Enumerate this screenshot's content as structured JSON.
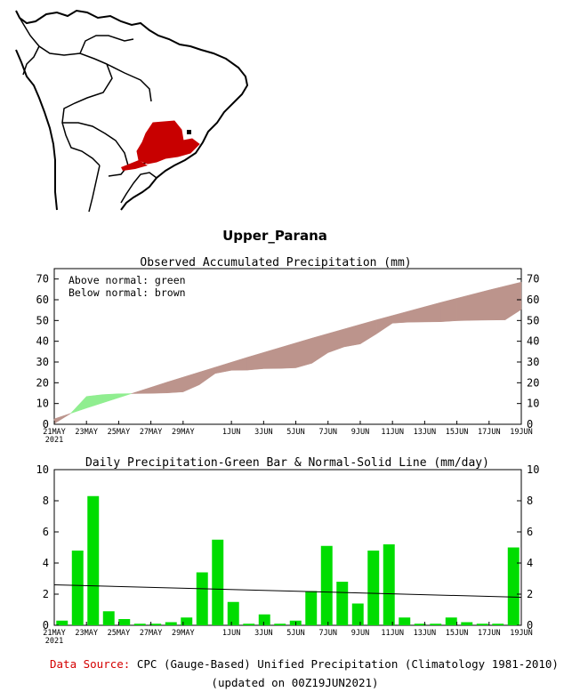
{
  "region_name": "Upper_Parana",
  "footer": {
    "source_label": "Data Source:",
    "source_text": "CPC (Gauge-Based) Unified Precipitation (Climatology 1981-2010)",
    "updated": "(updated on 00Z19JUN2021)"
  },
  "colors": {
    "region": "#c80000",
    "above_normal": "#90ee90",
    "below_normal": "#bc948c",
    "bar": "#00dd00",
    "source_label": "#d40000"
  },
  "chart_data": [
    {
      "type": "area",
      "title": "Observed Accumulated Precipitation (mm)",
      "annotations": [
        "Above normal: green",
        "Below normal: brown"
      ],
      "ylim": [
        0,
        75
      ],
      "yticks": [
        0,
        10,
        20,
        30,
        40,
        50,
        60,
        70
      ],
      "xlim": [
        0,
        29
      ],
      "xtick_days": [
        0,
        2,
        4,
        6,
        8,
        11,
        13,
        15,
        17,
        19,
        21,
        23,
        25,
        27,
        29
      ],
      "xtick_labels": [
        "21MAY",
        "23MAY",
        "25MAY",
        "27MAY",
        "29MAY",
        "1JUN",
        "3JUN",
        "5JUN",
        "7JUN",
        "9JUN",
        "11JUN",
        "13JUN",
        "15JUN",
        "17JUN",
        "19JUN"
      ],
      "year_label": "2021",
      "series": [
        {
          "name": "Observed",
          "values": [
            0.3,
            5.1,
            13.4,
            14.3,
            14.7,
            14.8,
            14.9,
            15.1,
            15.6,
            19.0,
            24.5,
            26.0,
            26.1,
            26.8,
            26.9,
            27.2,
            29.4,
            34.5,
            37.3,
            38.7,
            43.5,
            48.7,
            49.2,
            49.3,
            49.4,
            49.9,
            50.1,
            50.2,
            50.3,
            55.3
          ]
        },
        {
          "name": "Normal",
          "values": [
            2.6,
            5.2,
            7.8,
            10.3,
            12.8,
            15.3,
            17.8,
            20.3,
            22.7,
            25.1,
            27.5,
            29.9,
            32.3,
            34.6,
            36.9,
            39.2,
            41.5,
            43.7,
            45.9,
            48.1,
            50.3,
            52.4,
            54.5,
            56.6,
            58.7,
            60.7,
            62.7,
            64.7,
            66.6,
            68.5
          ]
        }
      ]
    },
    {
      "type": "bar",
      "title": "Daily Precipitation-Green Bar & Normal-Solid Line (mm/day)",
      "ylim": [
        0,
        10
      ],
      "yticks": [
        0,
        2,
        4,
        6,
        8,
        10
      ],
      "xtick_days": [
        0,
        2,
        4,
        6,
        8,
        11,
        13,
        15,
        17,
        19,
        21,
        23,
        25,
        27,
        29
      ],
      "xtick_labels": [
        "21MAY",
        "23MAY",
        "25MAY",
        "27MAY",
        "29MAY",
        "1JUN",
        "3JUN",
        "5JUN",
        "7JUN",
        "9JUN",
        "11JUN",
        "13JUN",
        "15JUN",
        "17JUN",
        "19JUN"
      ],
      "year_label": "2021",
      "values": [
        0.3,
        4.8,
        8.3,
        0.9,
        0.4,
        0.1,
        0.1,
        0.2,
        0.5,
        3.4,
        5.5,
        1.5,
        0.1,
        0.7,
        0.1,
        0.3,
        2.2,
        5.1,
        2.8,
        1.4,
        4.8,
        5.2,
        0.5,
        0.1,
        0.1,
        0.5,
        0.2,
        0.1,
        0.1,
        5.0
      ],
      "normal_line": {
        "start": 2.6,
        "end": 1.8
      }
    }
  ]
}
